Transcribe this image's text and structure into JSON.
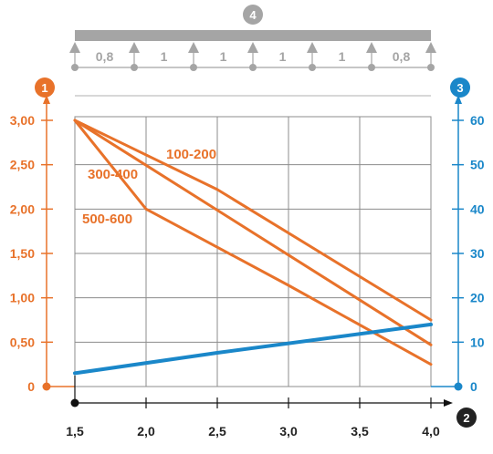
{
  "chart_data": {
    "type": "line",
    "x": [
      1.5,
      2.0,
      2.5,
      3.0,
      3.5,
      4.0
    ],
    "x_tick_labels": [
      "1,5",
      "2,0",
      "2,5",
      "3,0",
      "3,5",
      "4,0"
    ],
    "xlim": [
      1.5,
      4.0
    ],
    "y_left": {
      "range": [
        0,
        3.0
      ],
      "tick_labels": [
        "0",
        "0,50",
        "1,00",
        "1,50",
        "2,00",
        "2,50",
        "3,00"
      ],
      "color": "#e8722a",
      "badge": "1"
    },
    "y_right": {
      "range": [
        0,
        60
      ],
      "tick_labels": [
        "0",
        "10",
        "20",
        "30",
        "40",
        "50",
        "60"
      ],
      "color": "#1a87c9",
      "badge": "3"
    },
    "x_badge": "2",
    "grid": true,
    "series": [
      {
        "name": "100-200",
        "axis": "left",
        "color": "#e8722a",
        "points": [
          [
            1.5,
            3.0
          ],
          [
            2.5,
            2.22
          ],
          [
            4.0,
            0.75
          ]
        ]
      },
      {
        "name": "300-400",
        "axis": "left",
        "color": "#e8722a",
        "points": [
          [
            1.5,
            3.0
          ],
          [
            4.0,
            0.47
          ]
        ]
      },
      {
        "name": "500-600",
        "axis": "left",
        "color": "#e8722a",
        "points": [
          [
            1.5,
            3.0
          ],
          [
            2.0,
            2.0
          ],
          [
            3.0,
            1.14
          ],
          [
            4.0,
            0.25
          ]
        ]
      },
      {
        "axis": "right",
        "color": "#1a87c9",
        "points": [
          [
            1.5,
            3.0
          ],
          [
            2.5,
            7.6
          ],
          [
            4.0,
            14.0
          ]
        ]
      }
    ],
    "span_diagram": {
      "badge": "4",
      "span_labels": [
        "0,8",
        "1",
        "1",
        "1",
        "1",
        "0,8"
      ],
      "beam_color": "#a5a5a5"
    }
  }
}
